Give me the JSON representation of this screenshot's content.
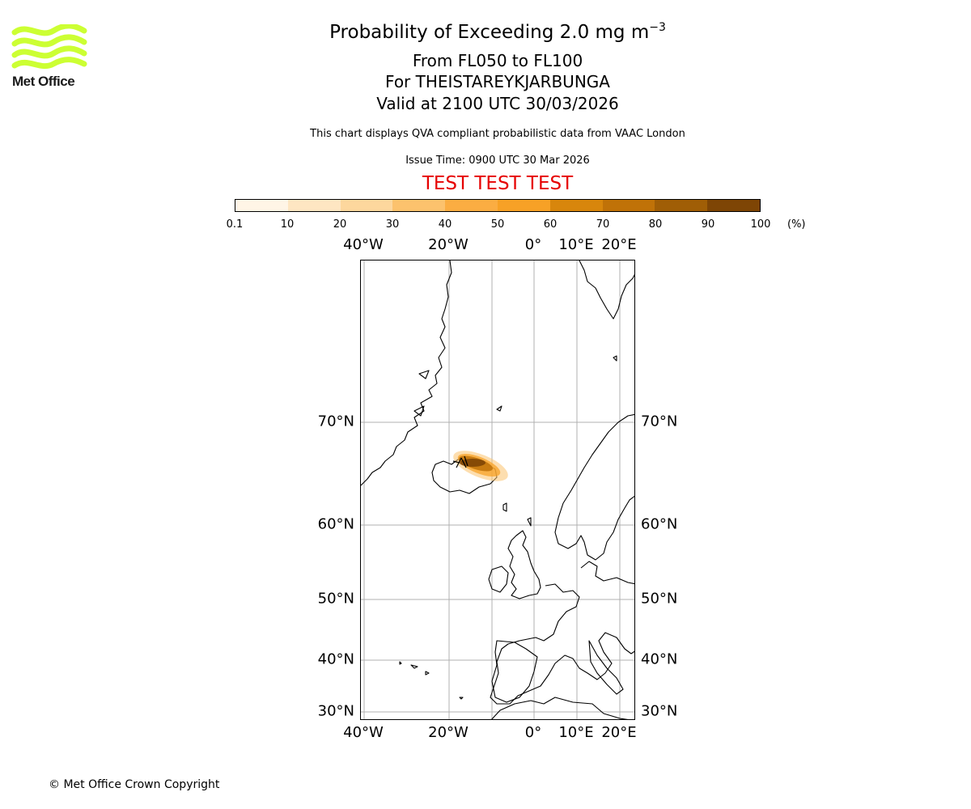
{
  "logo": {
    "text": "Met Office",
    "color": "#ccff33"
  },
  "title": {
    "main": "Probability of Exceeding 2.0 mg m",
    "main_sup": "−3",
    "levels": "From FL050 to FL100",
    "location": "For THEISTAREYKJARBUNGA",
    "valid": "Valid at 2100 UTC 30/03/2026",
    "description": "This chart displays QVA compliant probabilistic data from VAAC London",
    "issue": "Issue Time: 0900 UTC 30 Mar 2026",
    "test_banner": "TEST TEST TEST"
  },
  "colorbar": {
    "ticks": [
      "0.1",
      "10",
      "20",
      "30",
      "40",
      "50",
      "60",
      "70",
      "80",
      "90",
      "100"
    ],
    "unit": "(%)",
    "colors": [
      "#fff5e6",
      "#fee6c2",
      "#fdd79d",
      "#fcc26d",
      "#fbad42",
      "#f7a126",
      "#d8860c",
      "#c07208",
      "#a05e06",
      "#7e4505",
      "#5e3203"
    ]
  },
  "map": {
    "lon_labels": [
      "40°W",
      "20°W",
      "0°",
      "10°E",
      "20°E"
    ],
    "lat_labels": [
      "70°N",
      "60°N",
      "50°N",
      "40°N",
      "30°N"
    ],
    "colors": {
      "land_outline": "#000000",
      "grid": "#b0b0b0",
      "plume": "#8a4f06"
    }
  },
  "footer": {
    "copyright": "© Met Office Crown Copyright"
  }
}
